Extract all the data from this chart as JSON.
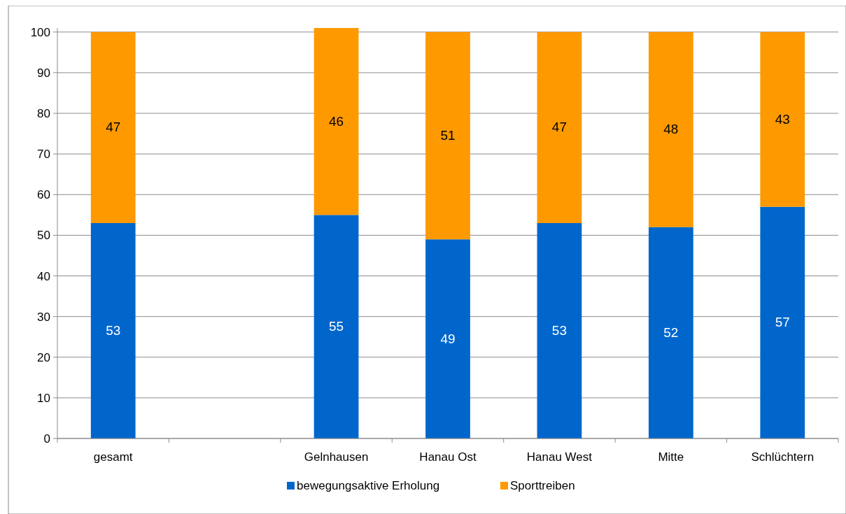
{
  "chart_data": {
    "type": "bar",
    "stacked": true,
    "categories": [
      "gesamt",
      null,
      "Gelnhausen",
      "Hanau Ost",
      "Hanau West",
      "Mitte",
      "Schlüchtern"
    ],
    "series": [
      {
        "name": "bewegungsaktive Erholung",
        "color": "#0066cc",
        "values": [
          53,
          null,
          55,
          49,
          53,
          52,
          57
        ]
      },
      {
        "name": "Sporttreiben",
        "color": "#ff9900",
        "values": [
          47,
          null,
          46,
          51,
          47,
          48,
          43
        ]
      }
    ],
    "ylim": [
      0,
      101
    ],
    "yticks": [
      0,
      10,
      20,
      30,
      40,
      50,
      60,
      70,
      80,
      90,
      100
    ],
    "grid": "y",
    "legend": "bottom",
    "data_labels": true
  }
}
